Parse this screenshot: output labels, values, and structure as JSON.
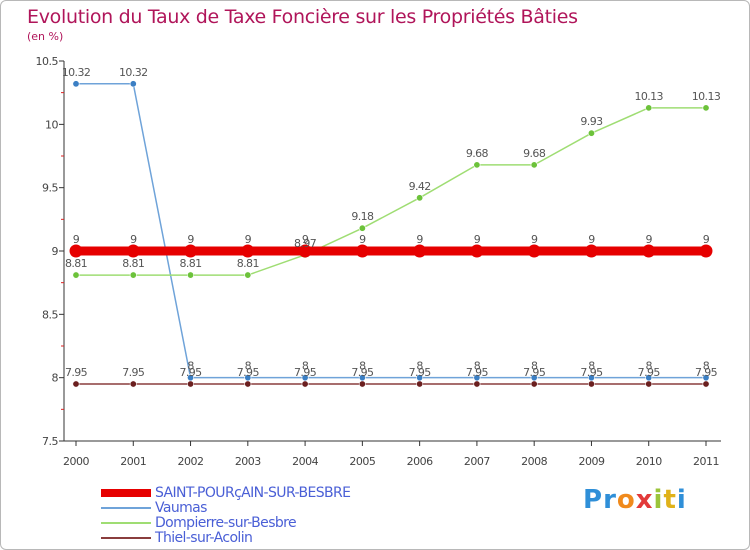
{
  "title": "Evolution du Taux de Taxe Foncière sur les Propriétés Bâties",
  "unit_label": "(en %)",
  "logo": {
    "letters": [
      "P",
      "r",
      "o",
      "x",
      "i",
      "t",
      "i"
    ],
    "colors": [
      "#2f8fd8",
      "#2f8fd8",
      "#f08a1c",
      "#e23a3a",
      "#9bc43a",
      "#e0b21a",
      "#2f8fd8"
    ]
  },
  "chart_data": {
    "type": "line",
    "title": "Evolution du Taux de Taxe Foncière sur les Propriétés Bâties",
    "ylabel": "(en %)",
    "xlabel": "",
    "x": [
      "2000",
      "2001",
      "2002",
      "2003",
      "2004",
      "2005",
      "2006",
      "2007",
      "2008",
      "2009",
      "2010",
      "2011"
    ],
    "ylim": [
      7.5,
      10.5
    ],
    "yticks": [
      "7.5",
      "8",
      "8.5",
      "9",
      "9.5",
      "10",
      "10.5"
    ],
    "grid": false,
    "legend_position": "bottom-left",
    "series": [
      {
        "name": "SAINT-POURçAIN-SUR-BESBRE",
        "color": "#e60000",
        "emphasis": true,
        "values": [
          9,
          9,
          9,
          9,
          9,
          9,
          9,
          9,
          9,
          9,
          9,
          9
        ],
        "labels": [
          "9",
          "9",
          "9",
          "9",
          "9",
          "9",
          "9",
          "9",
          "9",
          "9",
          "9",
          "9"
        ]
      },
      {
        "name": "Vaumas",
        "color": "#6fa3d9",
        "marker_color": "#3b7fc4",
        "values": [
          10.32,
          10.32,
          8,
          8,
          8,
          8,
          8,
          8,
          8,
          8,
          8,
          8
        ],
        "labels": [
          "10.32",
          "10.32",
          "8",
          "8",
          "8",
          "8",
          "8",
          "8",
          "8",
          "8",
          "8",
          "8"
        ]
      },
      {
        "name": "Dompierre-sur-Besbre",
        "color": "#9fdd73",
        "marker_color": "#6cc23a",
        "values": [
          8.81,
          8.81,
          8.81,
          8.81,
          8.97,
          9.18,
          9.42,
          9.68,
          9.68,
          9.93,
          10.13,
          10.13
        ],
        "labels": [
          "8.81",
          "8.81",
          "8.81",
          "8.81",
          "8.97",
          "9.18",
          "9.42",
          "9.68",
          "9.68",
          "9.93",
          "10.13",
          "10.13"
        ]
      },
      {
        "name": "Thiel-sur-Acolin",
        "color": "#8a3d3d",
        "marker_color": "#6b1f1f",
        "values": [
          7.95,
          7.95,
          7.95,
          7.95,
          7.95,
          7.95,
          7.95,
          7.95,
          7.95,
          7.95,
          7.95,
          7.95
        ],
        "labels": [
          "7.95",
          "7.95",
          "7.95",
          "7.95",
          "7.95",
          "7.95",
          "7.95",
          "7.95",
          "7.95",
          "7.95",
          "7.95",
          "7.95"
        ]
      }
    ]
  }
}
